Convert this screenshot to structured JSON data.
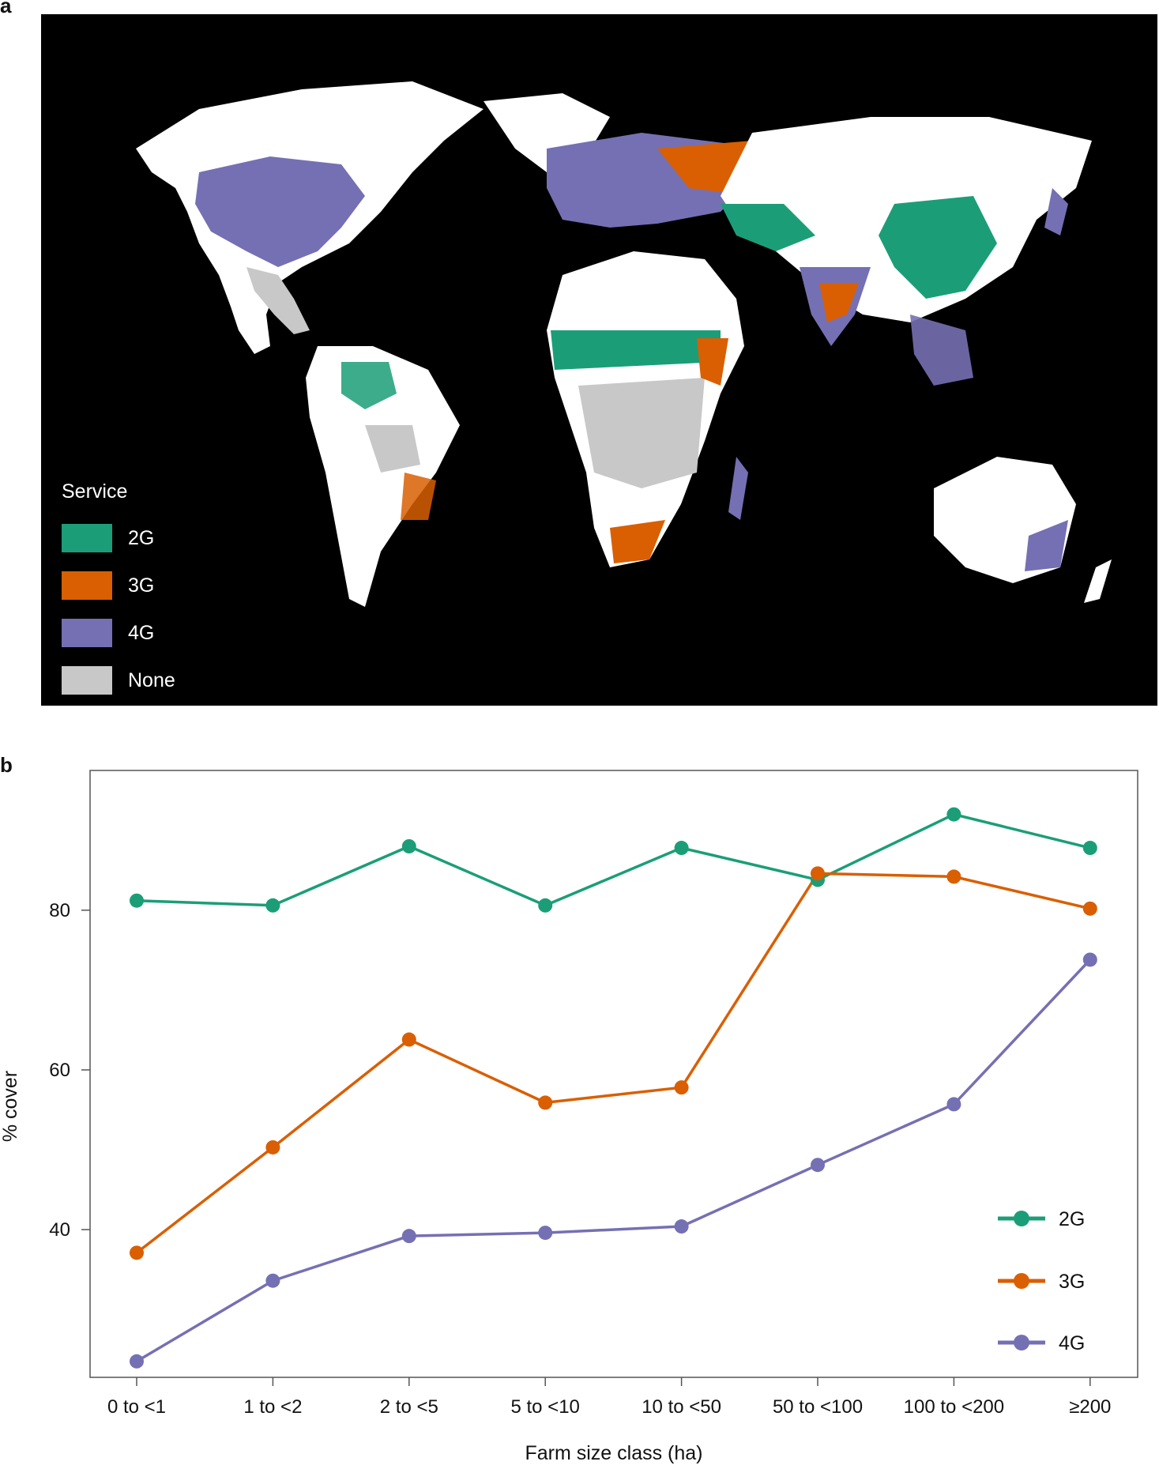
{
  "panel_a": {
    "label": "a",
    "legend_title": "Service",
    "legend": [
      {
        "label": "2G",
        "color": "#1b9e77"
      },
      {
        "label": "3G",
        "color": "#d95f02"
      },
      {
        "label": "4G",
        "color": "#7570b3"
      },
      {
        "label": "None",
        "color": "#c8c8c8"
      }
    ]
  },
  "panel_b": {
    "label": "b"
  },
  "chart_data": {
    "type": "line",
    "categories": [
      "0 to <1",
      "1 to <2",
      "2 to <5",
      "5 to <10",
      "10 to <50",
      "50 to <100",
      "100 to <200",
      "≥200"
    ],
    "xlabel": "Farm size class (ha)",
    "ylabel": "% cover",
    "ylim": [
      21.5,
      97.5
    ],
    "yticks": [
      40,
      60,
      80
    ],
    "grid": false,
    "legend_position": "bottom-right",
    "series": [
      {
        "name": "2G",
        "color": "#1b9e77",
        "values": [
          81.2,
          80.6,
          88.0,
          80.6,
          87.8,
          83.8,
          92.0,
          87.8
        ]
      },
      {
        "name": "3G",
        "color": "#d95f02",
        "values": [
          37.1,
          50.3,
          63.8,
          55.9,
          57.8,
          84.6,
          84.2,
          80.2
        ]
      },
      {
        "name": "4G",
        "color": "#7570b3",
        "values": [
          23.5,
          33.6,
          39.2,
          39.6,
          40.4,
          48.1,
          55.7,
          73.8
        ]
      }
    ]
  }
}
